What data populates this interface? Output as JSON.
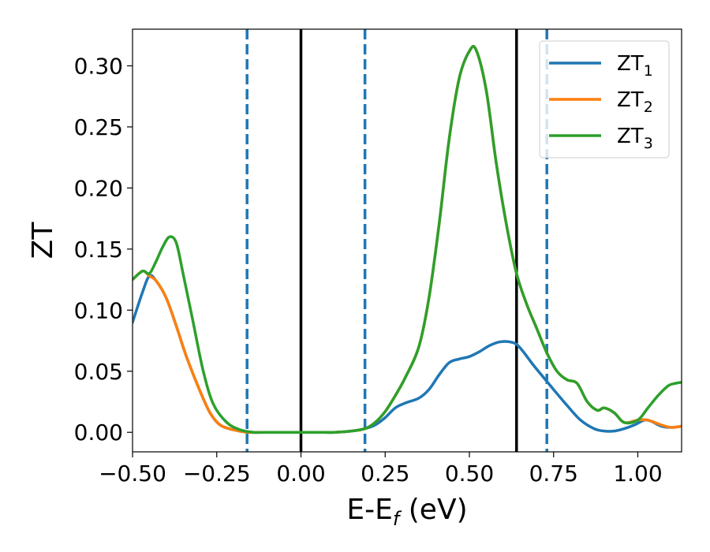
{
  "chart_data": {
    "type": "line",
    "xlabel_main": "E-E",
    "xlabel_sub": "f",
    "xlabel_unit": " (eV)",
    "ylabel": "ZT",
    "xlim": [
      -0.5,
      1.13
    ],
    "ylim": [
      -0.016,
      0.33
    ],
    "x_ticks": [
      -0.5,
      -0.25,
      0.0,
      0.25,
      0.5,
      0.75,
      1.0
    ],
    "x_tick_labels": [
      "−0.50",
      "−0.25",
      "0.00",
      "0.25",
      "0.50",
      "0.75",
      "1.00"
    ],
    "y_ticks": [
      0.0,
      0.05,
      0.1,
      0.15,
      0.2,
      0.25,
      0.3
    ],
    "y_tick_labels": [
      "0.00",
      "0.05",
      "0.10",
      "0.15",
      "0.20",
      "0.25",
      "0.30"
    ],
    "grid": false,
    "legend_position": "top-right",
    "vlines": [
      {
        "x": -0.16,
        "style": "dashed",
        "color": "#1f77b4"
      },
      {
        "x": 0.0,
        "style": "solid",
        "color": "#000000"
      },
      {
        "x": 0.19,
        "style": "dashed",
        "color": "#1f77b4"
      },
      {
        "x": 0.64,
        "style": "solid",
        "color": "#000000"
      },
      {
        "x": 0.73,
        "style": "dashed",
        "color": "#1f77b4"
      }
    ],
    "series": [
      {
        "name": "ZT",
        "subscript": "1",
        "color": "#1f77b4",
        "x": [
          -0.5,
          -0.47,
          -0.45,
          -0.43,
          -0.4,
          -0.37,
          -0.34,
          -0.3,
          -0.27,
          -0.24,
          -0.2,
          -0.16,
          -0.12,
          -0.05,
          0.0,
          0.05,
          0.1,
          0.15,
          0.19,
          0.22,
          0.25,
          0.28,
          0.31,
          0.35,
          0.38,
          0.41,
          0.44,
          0.47,
          0.5,
          0.53,
          0.56,
          0.59,
          0.62,
          0.64,
          0.66,
          0.69,
          0.72,
          0.75,
          0.79,
          0.83,
          0.87,
          0.9,
          0.93,
          0.96,
          0.99,
          1.02,
          1.04,
          1.07,
          1.1,
          1.13
        ],
        "y": [
          0.09,
          0.115,
          0.128,
          0.124,
          0.11,
          0.087,
          0.062,
          0.034,
          0.016,
          0.006,
          0.002,
          0.0,
          0.0,
          0.0,
          0.0,
          0.0,
          0.0,
          0.001,
          0.003,
          0.006,
          0.012,
          0.02,
          0.024,
          0.028,
          0.035,
          0.047,
          0.057,
          0.06,
          0.062,
          0.066,
          0.071,
          0.074,
          0.074,
          0.072,
          0.066,
          0.055,
          0.045,
          0.035,
          0.022,
          0.01,
          0.003,
          0.001,
          0.001,
          0.003,
          0.006,
          0.01,
          0.009,
          0.005,
          0.004,
          0.005
        ]
      },
      {
        "name": "ZT",
        "subscript": "2",
        "color": "#ff7f0e",
        "x": [
          -0.5,
          -0.47,
          -0.45,
          -0.43,
          -0.4,
          -0.37,
          -0.34,
          -0.3,
          -0.27,
          -0.24,
          -0.2,
          -0.16,
          -0.12,
          -0.05,
          0.0,
          0.05,
          0.1,
          0.15,
          0.19,
          0.22,
          0.25,
          0.28,
          0.31,
          0.35,
          0.38,
          0.41,
          0.44,
          0.47,
          0.5,
          0.52,
          0.55,
          0.58,
          0.61,
          0.64,
          0.67,
          0.7,
          0.73,
          0.76,
          0.79,
          0.82,
          0.85,
          0.88,
          0.9,
          0.93,
          0.96,
          1.0,
          1.03,
          1.07,
          1.1,
          1.13
        ],
        "y": [
          0.125,
          0.132,
          0.128,
          0.124,
          0.11,
          0.087,
          0.062,
          0.034,
          0.016,
          0.006,
          0.002,
          0.0,
          0.0,
          0.0,
          0.0,
          0.0,
          0.0,
          0.001,
          0.003,
          0.008,
          0.017,
          0.03,
          0.045,
          0.07,
          0.11,
          0.17,
          0.24,
          0.29,
          0.312,
          0.313,
          0.28,
          0.22,
          0.17,
          0.13,
          0.105,
          0.085,
          0.065,
          0.05,
          0.043,
          0.04,
          0.025,
          0.018,
          0.02,
          0.016,
          0.008,
          0.01,
          0.01,
          0.006,
          0.004,
          0.005
        ]
      },
      {
        "name": "ZT",
        "subscript": "3",
        "color": "#2ca02c",
        "x": [
          -0.5,
          -0.47,
          -0.45,
          -0.43,
          -0.41,
          -0.39,
          -0.37,
          -0.35,
          -0.32,
          -0.29,
          -0.26,
          -0.22,
          -0.18,
          -0.14,
          -0.1,
          -0.05,
          0.0,
          0.05,
          0.1,
          0.15,
          0.19,
          0.22,
          0.25,
          0.28,
          0.31,
          0.35,
          0.38,
          0.41,
          0.44,
          0.47,
          0.5,
          0.52,
          0.55,
          0.58,
          0.61,
          0.64,
          0.67,
          0.7,
          0.73,
          0.76,
          0.79,
          0.82,
          0.85,
          0.88,
          0.9,
          0.93,
          0.96,
          1.0,
          1.03,
          1.06,
          1.09,
          1.11,
          1.13
        ],
        "y": [
          0.125,
          0.132,
          0.13,
          0.14,
          0.152,
          0.16,
          0.155,
          0.13,
          0.09,
          0.05,
          0.023,
          0.008,
          0.002,
          0.0,
          0.0,
          0.0,
          0.0,
          0.0,
          0.0,
          0.001,
          0.003,
          0.008,
          0.017,
          0.03,
          0.045,
          0.07,
          0.11,
          0.17,
          0.24,
          0.29,
          0.312,
          0.313,
          0.28,
          0.22,
          0.17,
          0.13,
          0.105,
          0.085,
          0.065,
          0.05,
          0.043,
          0.04,
          0.025,
          0.018,
          0.02,
          0.016,
          0.008,
          0.01,
          0.02,
          0.03,
          0.038,
          0.04,
          0.041
        ]
      }
    ]
  }
}
